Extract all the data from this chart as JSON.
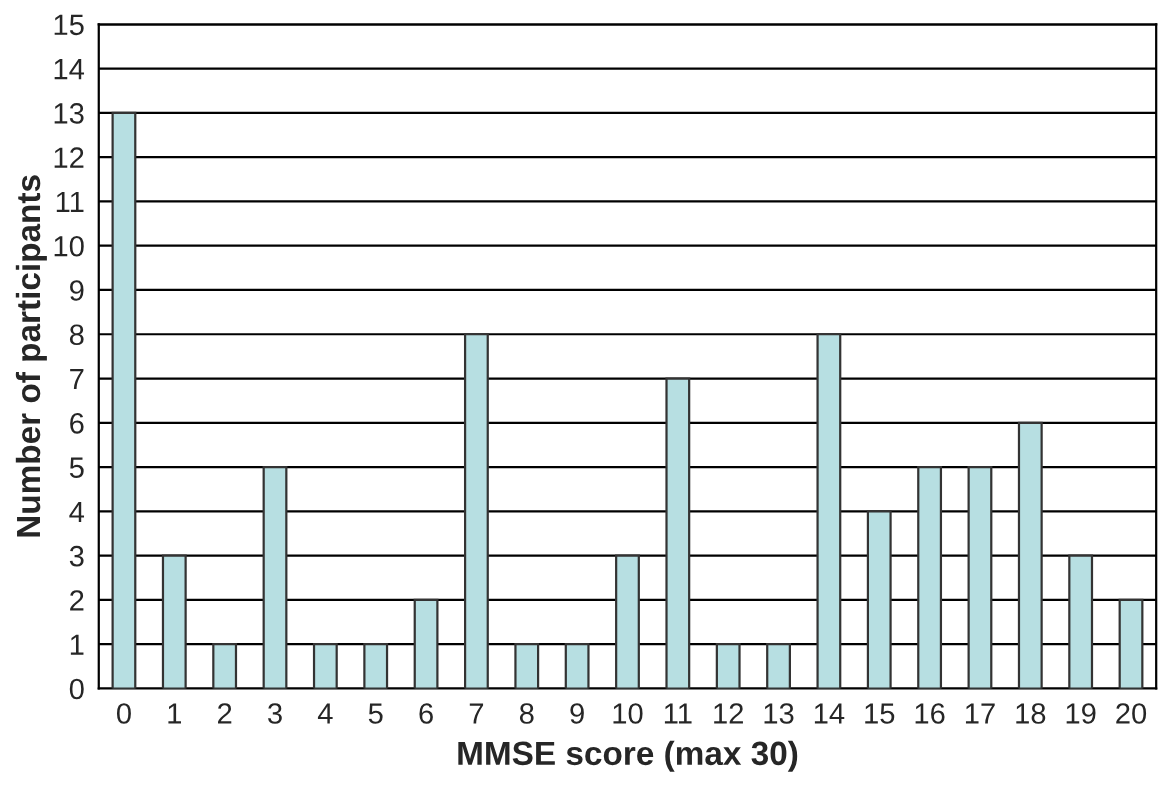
{
  "chart_data": {
    "type": "bar",
    "xlabel": "MMSE score (max 30)",
    "ylabel": "Number of participants",
    "categories": [
      "0",
      "1",
      "2",
      "3",
      "4",
      "5",
      "6",
      "7",
      "8",
      "9",
      "10",
      "11",
      "12",
      "13",
      "14",
      "15",
      "16",
      "17",
      "18",
      "19",
      "20"
    ],
    "values": [
      13,
      3,
      1,
      5,
      1,
      1,
      2,
      8,
      1,
      1,
      3,
      7,
      1,
      1,
      8,
      4,
      5,
      5,
      6,
      3,
      2
    ],
    "color": "#b7dfe2",
    "ylim": [
      0,
      15
    ],
    "yticks": [
      0,
      1,
      2,
      3,
      4,
      5,
      6,
      7,
      8,
      9,
      10,
      11,
      12,
      13,
      14,
      15
    ],
    "grid": "y",
    "legend": false
  }
}
